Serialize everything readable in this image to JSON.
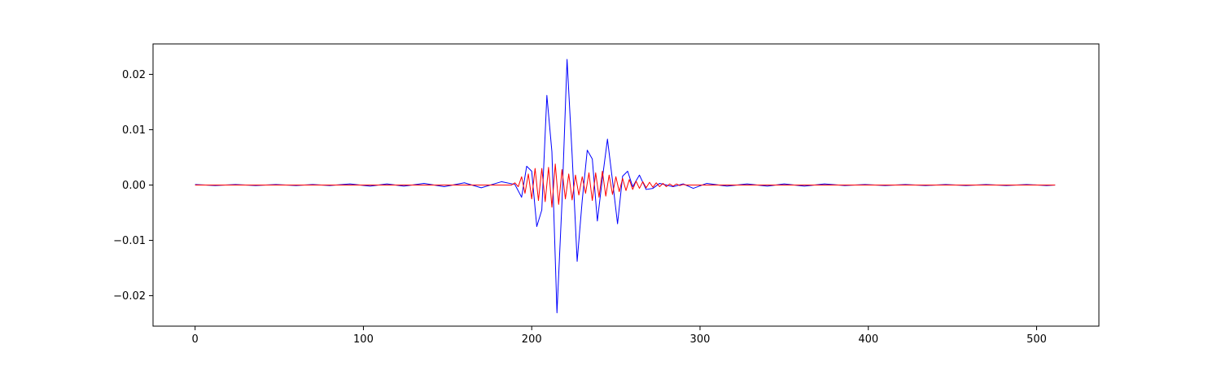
{
  "chart_data": {
    "type": "line",
    "title": "",
    "xlabel": "",
    "ylabel": "",
    "xlim": [
      -25,
      537
    ],
    "ylim": [
      -0.0255,
      0.0255
    ],
    "grid": false,
    "legend": "none",
    "x_ticks": [
      {
        "value": 0,
        "label": "0"
      },
      {
        "value": 100,
        "label": "100"
      },
      {
        "value": 200,
        "label": "200"
      },
      {
        "value": 300,
        "label": "300"
      },
      {
        "value": 400,
        "label": "400"
      },
      {
        "value": 500,
        "label": "500"
      }
    ],
    "y_ticks": [
      {
        "value": -0.02,
        "label": "−0.02"
      },
      {
        "value": -0.01,
        "label": "−0.01"
      },
      {
        "value": 0.0,
        "label": "0.00"
      },
      {
        "value": 0.01,
        "label": "0.01"
      },
      {
        "value": 0.02,
        "label": "0.02"
      }
    ],
    "series": [
      {
        "color": "#0000ff",
        "x": [
          0,
          12,
          24,
          36,
          48,
          60,
          70,
          80,
          92,
          104,
          114,
          124,
          136,
          148,
          160,
          170,
          182,
          190,
          194,
          197,
          200,
          203,
          206,
          209,
          212,
          215,
          218,
          221,
          224,
          227,
          230,
          233,
          236,
          239,
          242,
          245,
          248,
          251,
          254,
          257,
          260,
          264,
          268,
          272,
          276,
          284,
          290,
          296,
          304,
          316,
          328,
          340,
          350,
          362,
          374,
          386,
          398,
          410,
          422,
          434,
          446,
          458,
          470,
          482,
          494,
          506,
          511
        ],
        "y": [
          0.0001,
          -0.0001,
          0.0001,
          -0.0001,
          0.0001,
          -0.0001,
          0.0001,
          -0.0001,
          0.0002,
          -0.0002,
          0.0002,
          -0.0002,
          0.0003,
          -0.0003,
          0.0004,
          -0.0005,
          0.0006,
          0.0001,
          -0.0022,
          0.0034,
          0.0025,
          -0.0075,
          -0.0045,
          0.0162,
          0.006,
          -0.0231,
          -0.003,
          0.0227,
          0.0055,
          -0.0138,
          -0.0028,
          0.0063,
          0.0047,
          -0.0065,
          0.0012,
          0.0083,
          0.0008,
          -0.007,
          0.0016,
          0.0025,
          -0.0003,
          0.0018,
          -0.0008,
          -0.0006,
          0.0003,
          -0.0003,
          0.0002,
          -0.0006,
          0.0003,
          -0.0002,
          0.0002,
          -0.0002,
          0.0002,
          -0.0002,
          0.0002,
          -0.0001,
          0.0001,
          -0.0001,
          0.0001,
          -0.0001,
          0.0001,
          -0.0001,
          0.0001,
          -0.0001,
          0.0001,
          -0.0001,
          0.0
        ]
      },
      {
        "color": "#ff0000",
        "x": [
          0,
          100,
          188,
          190,
          192,
          194,
          196,
          198,
          200,
          202,
          204,
          206,
          208,
          210,
          212,
          214,
          216,
          218,
          220,
          222,
          224,
          226,
          228,
          230,
          232,
          234,
          236,
          238,
          240,
          242,
          244,
          246,
          248,
          250,
          252,
          254,
          256,
          258,
          260,
          262,
          264,
          266,
          268,
          270,
          272,
          274,
          276,
          278,
          280,
          282,
          284,
          286,
          288,
          290,
          292,
          300,
          400,
          511
        ],
        "y": [
          0.0,
          0.0,
          0.0,
          0.0004,
          -0.0003,
          0.0015,
          -0.0015,
          0.002,
          -0.0025,
          0.003,
          -0.0028,
          0.003,
          -0.003,
          0.0032,
          -0.004,
          0.0038,
          -0.0035,
          0.0028,
          -0.0025,
          0.002,
          -0.0027,
          0.0018,
          -0.0018,
          0.0015,
          -0.0015,
          0.0022,
          -0.0028,
          0.0022,
          -0.0022,
          0.0025,
          -0.002,
          0.0018,
          -0.0017,
          0.0015,
          -0.0012,
          0.0012,
          -0.001,
          0.001,
          -0.0008,
          0.0007,
          -0.0006,
          0.0006,
          -0.0005,
          0.0005,
          -0.0004,
          0.0004,
          -0.0003,
          0.0003,
          -0.0003,
          0.0002,
          -0.0002,
          0.0002,
          -0.0001,
          0.0001,
          0.0,
          0.0,
          0.0,
          0.0
        ]
      }
    ]
  }
}
